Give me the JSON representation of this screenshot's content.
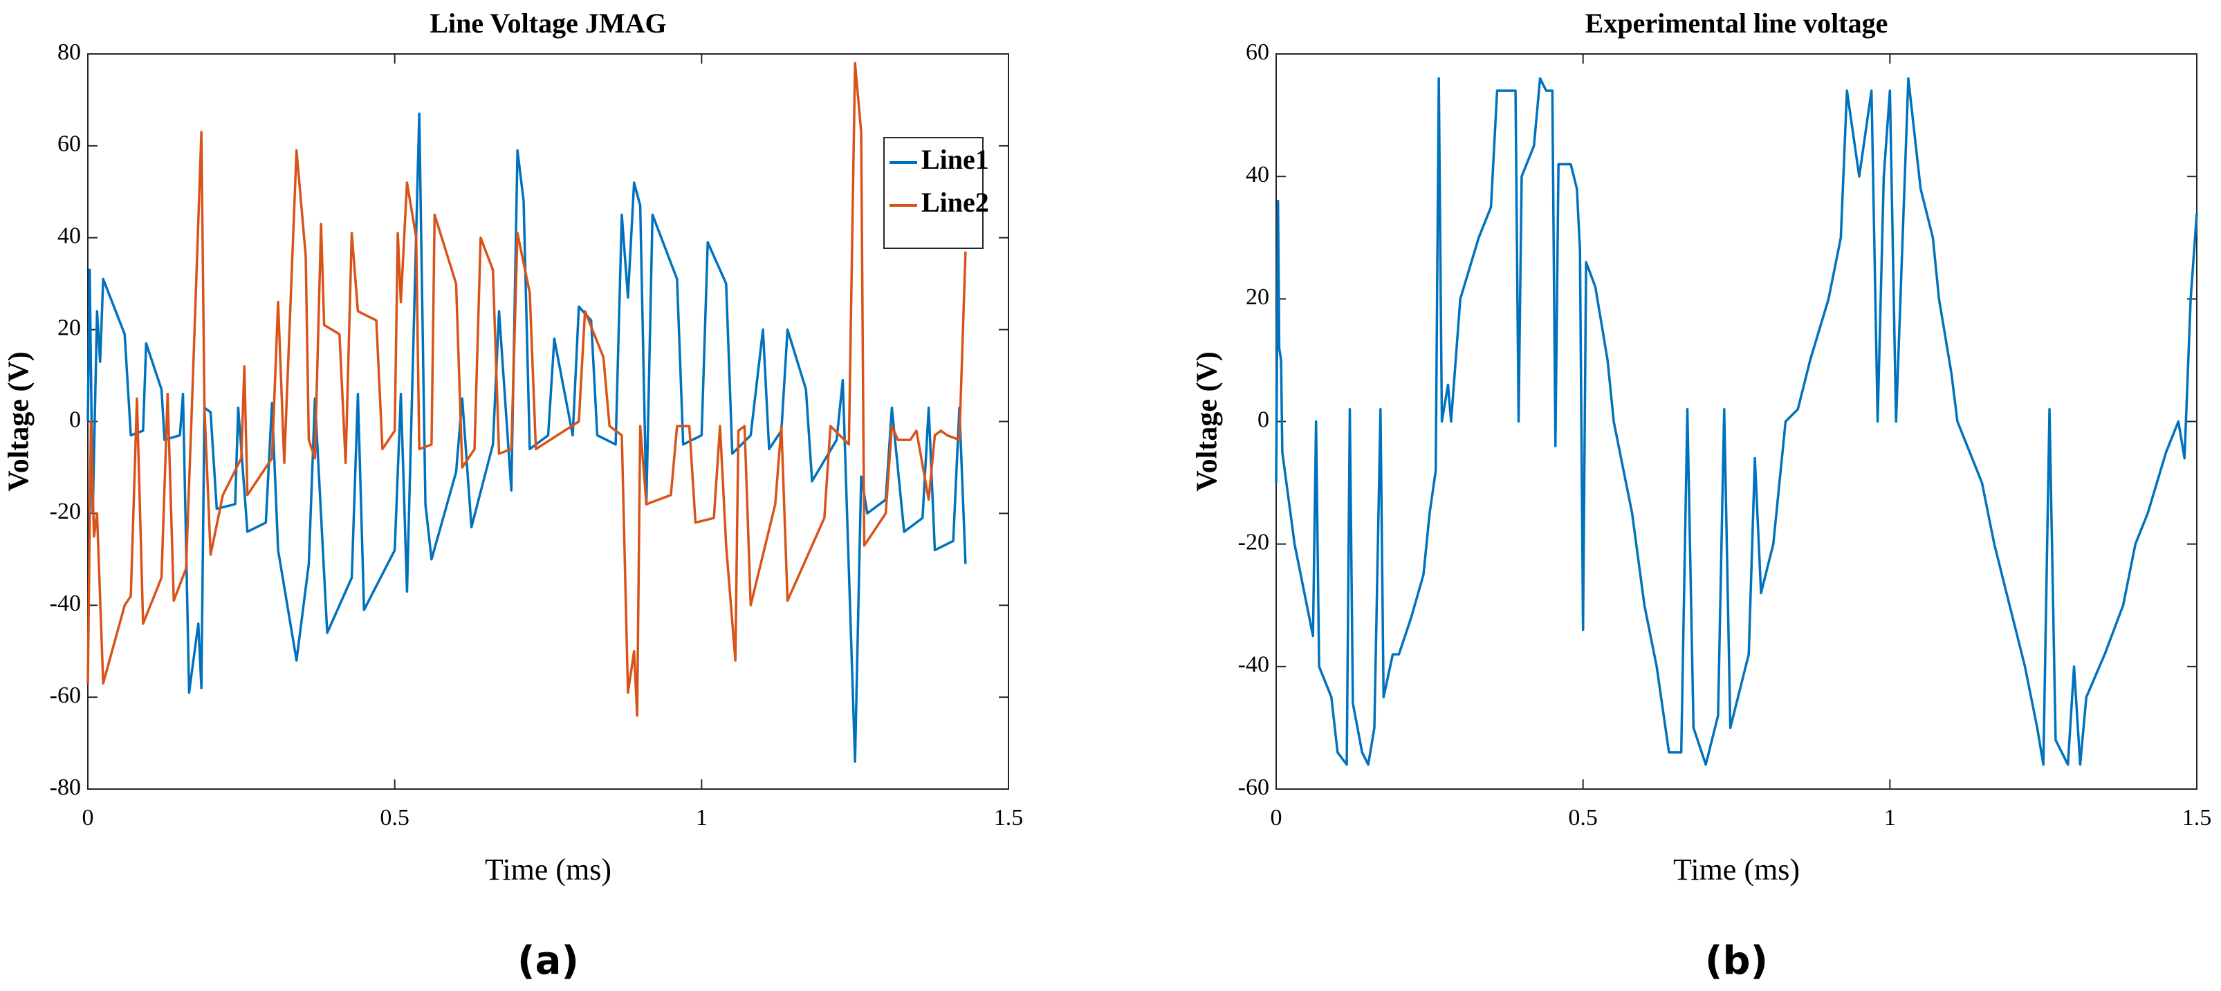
{
  "chart_data": [
    {
      "type": "line",
      "title": "Line Voltage JMAG",
      "xlabel": "Time (ms)",
      "ylabel": "Voltage (V)",
      "caption": "(a)",
      "xlim": [
        0,
        1.5
      ],
      "xticks": [
        0,
        0.5,
        1,
        1.5
      ],
      "ylim": [
        -80,
        80
      ],
      "yticks": [
        -80,
        -60,
        -40,
        -20,
        0,
        20,
        40,
        60,
        80
      ],
      "legend": "upper right",
      "series": [
        {
          "name": "Line1",
          "color": "#0072bd",
          "x": [
            0,
            0.003,
            0.008,
            0.015,
            0.02,
            0.025,
            0.06,
            0.07,
            0.09,
            0.095,
            0.12,
            0.125,
            0.15,
            0.155,
            0.165,
            0.18,
            0.185,
            0.19,
            0.2,
            0.21,
            0.24,
            0.245,
            0.26,
            0.29,
            0.3,
            0.31,
            0.34,
            0.36,
            0.37,
            0.39,
            0.43,
            0.44,
            0.45,
            0.5,
            0.51,
            0.52,
            0.54,
            0.55,
            0.56,
            0.6,
            0.61,
            0.625,
            0.66,
            0.67,
            0.69,
            0.7,
            0.71,
            0.72,
            0.75,
            0.76,
            0.79,
            0.8,
            0.82,
            0.83,
            0.86,
            0.87,
            0.88,
            0.89,
            0.9,
            0.91,
            0.92,
            0.96,
            0.97,
            1.0,
            1.01,
            1.04,
            1.05,
            1.08,
            1.1,
            1.11,
            1.13,
            1.14,
            1.17,
            1.18,
            1.22,
            1.23,
            1.25,
            1.26,
            1.27,
            1.3,
            1.31,
            1.33,
            1.36,
            1.37,
            1.38,
            1.41,
            1.42,
            1.43
          ],
          "values": [
            0,
            33,
            -20,
            24,
            13,
            31,
            19,
            -3,
            -2,
            17,
            7,
            -4,
            -3,
            6,
            -59,
            -44,
            -58,
            3,
            2,
            -19,
            -18,
            3,
            -24,
            -22,
            4,
            -28,
            -52,
            -31,
            5,
            -46,
            -34,
            6,
            -41,
            -28,
            6,
            -37,
            67,
            -18,
            -30,
            -11,
            5,
            -23,
            -5,
            24,
            -15,
            59,
            48,
            -6,
            -3,
            18,
            -3,
            25,
            22,
            -3,
            -5,
            45,
            27,
            52,
            47,
            -18,
            45,
            31,
            -5,
            -3,
            39,
            30,
            -7,
            -3,
            20,
            -6,
            -2,
            20,
            7,
            -13,
            -4,
            9,
            -74,
            -12,
            -20,
            -17,
            3,
            -24,
            -21,
            3,
            -28,
            -26,
            3,
            -31
          ]
        },
        {
          "name": "Line2",
          "color": "#d95319",
          "x": [
            0,
            0.005,
            0.01,
            0.015,
            0.025,
            0.06,
            0.07,
            0.08,
            0.09,
            0.12,
            0.13,
            0.14,
            0.16,
            0.17,
            0.185,
            0.19,
            0.2,
            0.22,
            0.25,
            0.255,
            0.26,
            0.3,
            0.31,
            0.32,
            0.34,
            0.355,
            0.36,
            0.37,
            0.38,
            0.385,
            0.41,
            0.42,
            0.43,
            0.44,
            0.47,
            0.48,
            0.5,
            0.505,
            0.51,
            0.52,
            0.535,
            0.54,
            0.56,
            0.565,
            0.6,
            0.61,
            0.63,
            0.64,
            0.66,
            0.67,
            0.69,
            0.7,
            0.72,
            0.73,
            0.8,
            0.81,
            0.84,
            0.85,
            0.87,
            0.88,
            0.89,
            0.895,
            0.9,
            0.91,
            0.95,
            0.96,
            0.98,
            0.99,
            1.02,
            1.03,
            1.04,
            1.055,
            1.06,
            1.07,
            1.08,
            1.12,
            1.13,
            1.14,
            1.2,
            1.21,
            1.24,
            1.25,
            1.26,
            1.265,
            1.3,
            1.31,
            1.32,
            1.34,
            1.35,
            1.37,
            1.38,
            1.39,
            1.4,
            1.42,
            1.43
          ],
          "values": [
            -57,
            0,
            -25,
            -20,
            -57,
            -40,
            -38,
            5,
            -44,
            -34,
            6,
            -39,
            -32,
            5,
            63,
            3,
            -29,
            -16,
            -8,
            12,
            -16,
            -8,
            26,
            -9,
            59,
            36,
            -4,
            -8,
            43,
            21,
            19,
            -9,
            41,
            24,
            22,
            -6,
            -2,
            41,
            26,
            52,
            40,
            -6,
            -5,
            45,
            30,
            -10,
            -6,
            40,
            33,
            -7,
            -6,
            41,
            28,
            -6,
            0,
            24,
            14,
            -1,
            -3,
            -59,
            -50,
            -64,
            -1,
            -18,
            -16,
            -1,
            -1,
            -22,
            -21,
            -1,
            -27,
            -52,
            -2,
            -1,
            -40,
            -18,
            -1,
            -39,
            -21,
            -1,
            -5,
            78,
            63,
            -27,
            -20,
            -1,
            -4,
            -4,
            -2,
            -17,
            -3,
            -2,
            -3,
            -4,
            37
          ]
        }
      ]
    },
    {
      "type": "line",
      "title": "Experimental line voltage",
      "xlabel": "Time (ms)",
      "ylabel": "Voltage (V)",
      "caption": "(b)",
      "xlim": [
        0,
        1.5
      ],
      "xticks": [
        0,
        0.5,
        1,
        1.5
      ],
      "ylim": [
        -60,
        60
      ],
      "yticks": [
        -60,
        -40,
        -20,
        0,
        20,
        40,
        60
      ],
      "series": [
        {
          "color": "#0072bd",
          "x": [
            0,
            0.003,
            0.005,
            0.008,
            0.01,
            0.03,
            0.05,
            0.06,
            0.065,
            0.07,
            0.09,
            0.1,
            0.115,
            0.12,
            0.125,
            0.14,
            0.15,
            0.16,
            0.17,
            0.175,
            0.19,
            0.2,
            0.22,
            0.24,
            0.25,
            0.26,
            0.265,
            0.27,
            0.28,
            0.285,
            0.3,
            0.33,
            0.35,
            0.36,
            0.39,
            0.395,
            0.4,
            0.42,
            0.43,
            0.44,
            0.45,
            0.455,
            0.46,
            0.48,
            0.49,
            0.495,
            0.5,
            0.505,
            0.52,
            0.54,
            0.55,
            0.56,
            0.58,
            0.6,
            0.62,
            0.64,
            0.66,
            0.67,
            0.68,
            0.7,
            0.72,
            0.73,
            0.74,
            0.77,
            0.78,
            0.79,
            0.81,
            0.82,
            0.83,
            0.85,
            0.87,
            0.9,
            0.92,
            0.93,
            0.95,
            0.97,
            0.98,
            0.99,
            1.0,
            1.01,
            1.03,
            1.05,
            1.07,
            1.08,
            1.1,
            1.11,
            1.13,
            1.15,
            1.17,
            1.2,
            1.22,
            1.24,
            1.25,
            1.26,
            1.27,
            1.29,
            1.3,
            1.31,
            1.32,
            1.35,
            1.38,
            1.4,
            1.42,
            1.45,
            1.47,
            1.48,
            1.49,
            1.5
          ],
          "values": [
            -10,
            36,
            12,
            10,
            -5,
            -20,
            -30,
            -35,
            0,
            -40,
            -45,
            -54,
            -56,
            2,
            -46,
            -54,
            -56,
            -50,
            2,
            -45,
            -38,
            -38,
            -32,
            -25,
            -15,
            -8,
            56,
            0,
            6,
            0,
            20,
            30,
            35,
            54,
            54,
            0,
            40,
            45,
            56,
            54,
            54,
            -4,
            42,
            42,
            38,
            28,
            -34,
            26,
            22,
            10,
            0,
            -5,
            -15,
            -30,
            -40,
            -54,
            -54,
            2,
            -50,
            -56,
            -48,
            2,
            -50,
            -38,
            -6,
            -28,
            -20,
            -10,
            0,
            2,
            10,
            20,
            30,
            54,
            40,
            54,
            0,
            40,
            54,
            0,
            56,
            38,
            30,
            20,
            8,
            0,
            -5,
            -10,
            -20,
            -32,
            -40,
            -50,
            -56,
            2,
            -52,
            -56,
            -40,
            -56,
            -45,
            -38,
            -30,
            -20,
            -15,
            -5,
            0,
            -6,
            20,
            34
          ]
        }
      ]
    }
  ]
}
